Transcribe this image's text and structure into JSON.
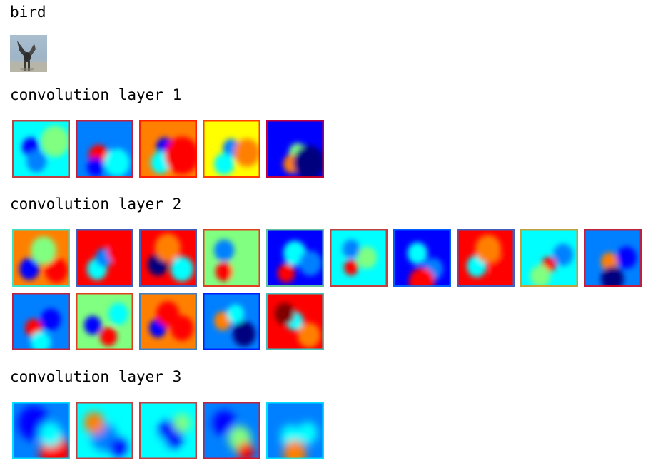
{
  "input": {
    "class_label": "bird"
  },
  "layers": [
    {
      "title": "convolution layer 1",
      "map_count": 5
    },
    {
      "title": "convolution layer 2",
      "map_count": 15
    },
    {
      "title": "convolution layer 3",
      "map_count": 5
    }
  ],
  "colormap": {
    "name": "jet",
    "stops": [
      "#00007f",
      "#0000ff",
      "#0080ff",
      "#00ffff",
      "#80ff80",
      "#ffff00",
      "#ff8000",
      "#ff0000",
      "#7f0000"
    ]
  }
}
